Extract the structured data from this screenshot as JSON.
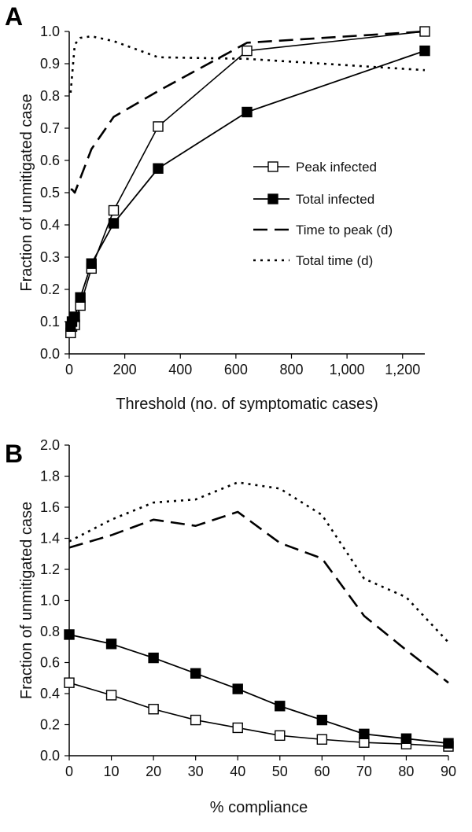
{
  "chart_data": [
    {
      "panel": "A",
      "type": "line",
      "xlabel": "Threshold (no. of symptomatic cases)",
      "ylabel": "Fraction of unmitigated case",
      "xlim": [
        0,
        1280
      ],
      "ylim": [
        0,
        1.0
      ],
      "xticks": [
        0,
        200,
        400,
        600,
        800,
        1000,
        1200
      ],
      "xtick_labels": [
        "0",
        "200",
        "400",
        "600",
        "800",
        "1,000",
        "1,200"
      ],
      "yticks": [
        0,
        0.1,
        0.2,
        0.3,
        0.4,
        0.5,
        0.6,
        0.7,
        0.8,
        0.9,
        1.0
      ],
      "ytick_labels": [
        "0.0",
        "0.1",
        "0.2",
        "0.3",
        "0.4",
        "0.5",
        "0.6",
        "0.7",
        "0.8",
        "0.9",
        "1.0"
      ],
      "grid": false,
      "legend_position": "center-right",
      "series": [
        {
          "name": "Peak infected",
          "style": "open-square",
          "x": [
            5,
            10,
            20,
            40,
            80,
            160,
            320,
            640,
            1280
          ],
          "y": [
            0.065,
            0.085,
            0.09,
            0.15,
            0.265,
            0.445,
            0.705,
            0.94,
            1.0
          ]
        },
        {
          "name": "Total infected",
          "style": "filled-square",
          "x": [
            5,
            10,
            20,
            40,
            80,
            160,
            320,
            640,
            1280
          ],
          "y": [
            0.085,
            0.1,
            0.115,
            0.175,
            0.28,
            0.405,
            0.575,
            0.75,
            0.94
          ]
        },
        {
          "name": "Time to peak (d)",
          "style": "dashed",
          "x": [
            5,
            10,
            20,
            40,
            80,
            160,
            320,
            640,
            1280
          ],
          "y": [
            0.51,
            0.51,
            0.5,
            0.545,
            0.635,
            0.735,
            0.815,
            0.965,
            1.0
          ]
        },
        {
          "name": "Total time (d)",
          "style": "dotted",
          "x": [
            5,
            10,
            20,
            40,
            80,
            160,
            320,
            640,
            1280
          ],
          "y": [
            0.81,
            0.86,
            0.96,
            0.98,
            0.985,
            0.97,
            0.92,
            0.915,
            0.88
          ]
        }
      ]
    },
    {
      "panel": "B",
      "type": "line",
      "xlabel": "% compliance",
      "ylabel": "Fraction of unmitigated case",
      "xlim": [
        0,
        90
      ],
      "ylim": [
        0,
        2.0
      ],
      "xticks": [
        0,
        10,
        20,
        30,
        40,
        50,
        60,
        70,
        80,
        90
      ],
      "xtick_labels": [
        "0",
        "10",
        "20",
        "30",
        "40",
        "50",
        "60",
        "70",
        "80",
        "90"
      ],
      "yticks": [
        0,
        0.2,
        0.4,
        0.6,
        0.8,
        1.0,
        1.2,
        1.4,
        1.6,
        1.8,
        2.0
      ],
      "ytick_labels": [
        "0.0",
        "0.2",
        "0.4",
        "0.6",
        "0.8",
        "1.0",
        "1.2",
        "1.4",
        "1.6",
        "1.8",
        "2.0"
      ],
      "grid": false,
      "series": [
        {
          "name": "Peak infected",
          "style": "open-square",
          "x": [
            0,
            10,
            20,
            30,
            40,
            50,
            60,
            70,
            80,
            90
          ],
          "y": [
            0.47,
            0.39,
            0.3,
            0.23,
            0.18,
            0.13,
            0.105,
            0.085,
            0.075,
            0.06
          ]
        },
        {
          "name": "Total infected",
          "style": "filled-square",
          "x": [
            0,
            10,
            20,
            30,
            40,
            50,
            60,
            70,
            80,
            90
          ],
          "y": [
            0.78,
            0.72,
            0.63,
            0.53,
            0.43,
            0.32,
            0.23,
            0.14,
            0.11,
            0.08
          ]
        },
        {
          "name": "Time to peak (d)",
          "style": "dashed",
          "x": [
            0,
            10,
            20,
            30,
            40,
            50,
            60,
            70,
            80,
            90
          ],
          "y": [
            1.34,
            1.42,
            1.52,
            1.48,
            1.57,
            1.37,
            1.27,
            0.9,
            0.68,
            0.47
          ]
        },
        {
          "name": "Total time (d)",
          "style": "dotted",
          "x": [
            0,
            10,
            20,
            30,
            40,
            50,
            60,
            70,
            80,
            90
          ],
          "y": [
            1.38,
            1.52,
            1.63,
            1.65,
            1.76,
            1.72,
            1.55,
            1.14,
            1.02,
            0.73
          ]
        }
      ]
    }
  ]
}
